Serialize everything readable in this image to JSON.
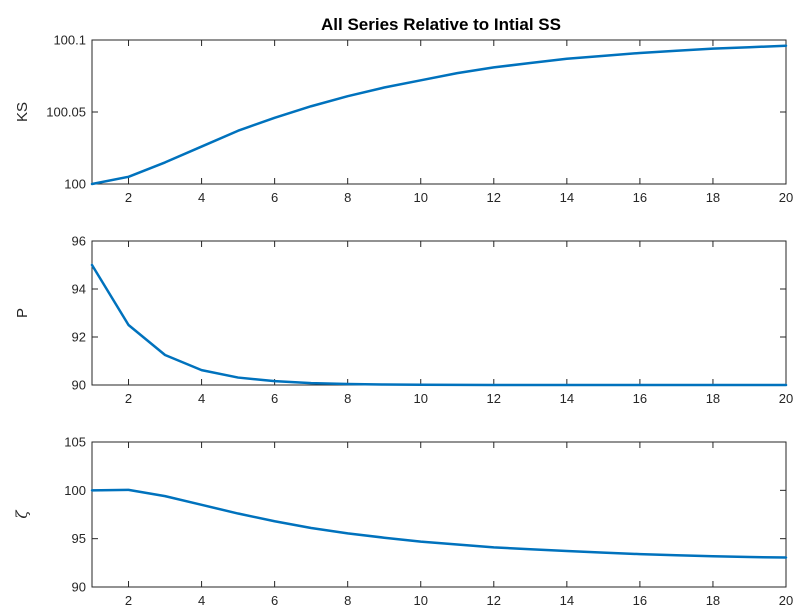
{
  "figure": {
    "title": "All Series Relative to Intial SS"
  },
  "chart_data": [
    {
      "type": "line",
      "ylabel": "KS",
      "xlabel": "",
      "xlim": [
        1,
        20
      ],
      "ylim": [
        100,
        100.1
      ],
      "xticks": [
        2,
        4,
        6,
        8,
        10,
        12,
        14,
        16,
        18,
        20
      ],
      "yticks": [
        100,
        100.05,
        100.1
      ],
      "ytick_labels": [
        "100",
        "100.05",
        "100.1"
      ],
      "grid": false,
      "series": [
        {
          "color": "#0072BD",
          "x": [
            1,
            2,
            3,
            4,
            5,
            6,
            7,
            8,
            9,
            10,
            11,
            12,
            13,
            14,
            15,
            16,
            17,
            18,
            19,
            20
          ],
          "values": [
            100.0,
            100.005,
            100.015,
            100.026,
            100.037,
            100.046,
            100.054,
            100.061,
            100.067,
            100.072,
            100.077,
            100.081,
            100.084,
            100.087,
            100.089,
            100.091,
            100.0925,
            100.094,
            100.095,
            100.096
          ]
        }
      ]
    },
    {
      "type": "line",
      "ylabel": "P",
      "xlabel": "",
      "xlim": [
        1,
        20
      ],
      "ylim": [
        90,
        96
      ],
      "xticks": [
        2,
        4,
        6,
        8,
        10,
        12,
        14,
        16,
        18,
        20
      ],
      "yticks": [
        90,
        92,
        94,
        96
      ],
      "ytick_labels": [
        "90",
        "92",
        "94",
        "96"
      ],
      "grid": false,
      "series": [
        {
          "color": "#0072BD",
          "x": [
            1,
            2,
            3,
            4,
            5,
            6,
            7,
            8,
            9,
            10,
            11,
            12,
            13,
            14,
            15,
            16,
            17,
            18,
            19,
            20
          ],
          "values": [
            95.0,
            92.5,
            91.25,
            90.62,
            90.31,
            90.16,
            90.08,
            90.04,
            90.02,
            90.01,
            90.005,
            90.0,
            90.0,
            90.0,
            90.0,
            90.0,
            90.0,
            90.0,
            90.0,
            90.0
          ]
        }
      ]
    },
    {
      "type": "line",
      "ylabel": "ζ",
      "xlabel": "",
      "xlim": [
        1,
        20
      ],
      "ylim": [
        90,
        105
      ],
      "xticks": [
        2,
        4,
        6,
        8,
        10,
        12,
        14,
        16,
        18,
        20
      ],
      "yticks": [
        90,
        95,
        100,
        105
      ],
      "ytick_labels": [
        "90",
        "95",
        "100",
        "105"
      ],
      "grid": false,
      "series": [
        {
          "color": "#0072BD",
          "x": [
            1,
            2,
            3,
            4,
            5,
            6,
            7,
            8,
            9,
            10,
            11,
            12,
            13,
            14,
            15,
            16,
            17,
            18,
            19,
            20
          ],
          "values": [
            100.0,
            100.05,
            99.4,
            98.5,
            97.6,
            96.8,
            96.1,
            95.55,
            95.1,
            94.7,
            94.4,
            94.1,
            93.9,
            93.72,
            93.55,
            93.4,
            93.28,
            93.18,
            93.1,
            93.05
          ]
        }
      ]
    }
  ]
}
